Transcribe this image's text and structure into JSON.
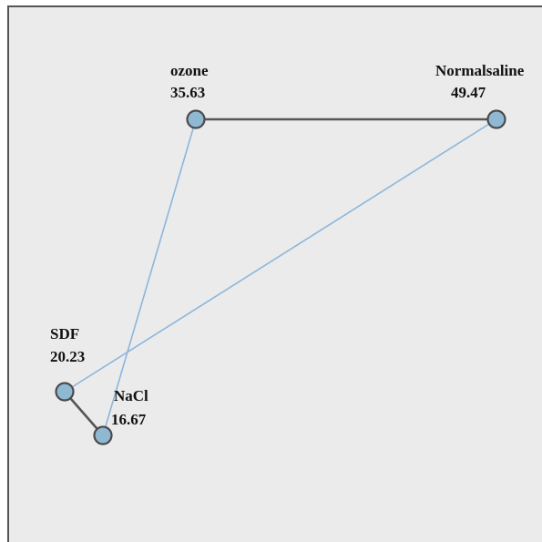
{
  "colors": {
    "background": "#ebebeb",
    "border": "#555555",
    "node_fill": "#8fb8d2",
    "node_stroke": "#4b4b4b",
    "edge_dark": "#555555",
    "edge_light": "#8cb6db"
  },
  "nodes": [
    {
      "id": "ozone",
      "name": "ozone",
      "value": "35.63"
    },
    {
      "id": "normalsaline",
      "name": "Normalsaline",
      "value": "49.47"
    },
    {
      "id": "sdf",
      "name": "SDF",
      "value": "20.23"
    },
    {
      "id": "nacl",
      "name": "NaCl",
      "value": "16.67"
    }
  ],
  "edges": [
    {
      "from": "ozone",
      "to": "normalsaline",
      "style": "dark"
    },
    {
      "from": "sdf",
      "to": "nacl",
      "style": "dark"
    },
    {
      "from": "ozone",
      "to": "nacl",
      "style": "light"
    },
    {
      "from": "normalsaline",
      "to": "sdf",
      "style": "light"
    }
  ]
}
